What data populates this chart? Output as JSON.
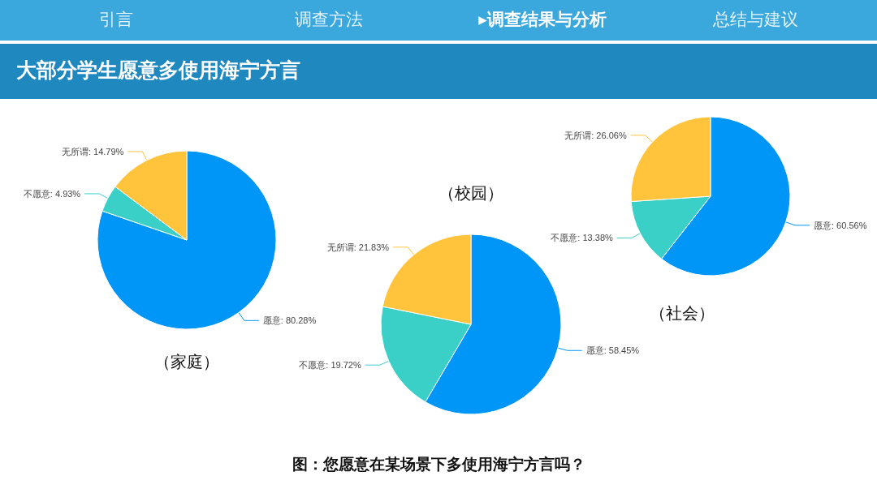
{
  "chart_data": [
    {
      "type": "pie",
      "title": "（家庭）",
      "categories": [
        "愿意",
        "不愿意",
        "无所谓"
      ],
      "values": [
        80.28,
        4.93,
        14.79
      ],
      "value_labels": [
        ": 80.28%",
        ": 4.93%",
        ": 14.79%"
      ],
      "colors": [
        "#0096f8",
        "#3ad0c8",
        "#ffc33c"
      ],
      "legend": false,
      "annotations": [
        "引言",
        "调查方法",
        "▸调查结果与分析",
        "总结与建议",
        "大部分学生愿意多使用海宁方言",
        "图：您愿意在某场景下多使用海宁方言吗？"
      ]
    },
    {
      "type": "pie",
      "title": "（校园）",
      "categories": [
        "愿意",
        "不愿意",
        "无所谓"
      ],
      "values": [
        58.45,
        19.72,
        21.83
      ],
      "value_labels": [
        ": 58.45%",
        ": 19.72%",
        ": 21.83%"
      ],
      "colors": [
        "#0096f8",
        "#3ad0c8",
        "#ffc33c"
      ],
      "legend": false
    },
    {
      "type": "pie",
      "title": "（社会）",
      "categories": [
        "愿意",
        "不愿意",
        "无所谓"
      ],
      "values": [
        60.56,
        13.38,
        26.06
      ],
      "value_labels": [
        ": 60.56%",
        ": 13.38%",
        ": 26.06%"
      ],
      "colors": [
        "#0096f8",
        "#3ad0c8",
        "#ffc33c"
      ],
      "legend": false
    }
  ]
}
